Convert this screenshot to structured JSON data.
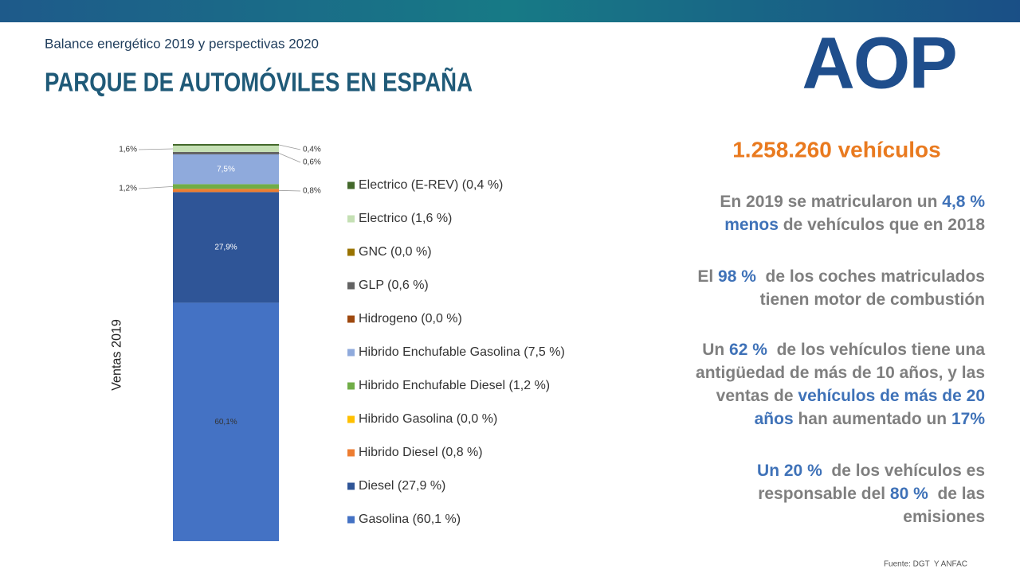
{
  "header": {
    "subtitle": "Balance energético 2019 y perspectivas 2020",
    "title": "PARQUE DE AUTOMÓVILES EN ESPAÑA",
    "logo": "AOP"
  },
  "chart_data": {
    "type": "stacked-bar",
    "categories": [
      "Ventas 2019"
    ],
    "series": [
      {
        "name": "Gasolina (60,1 %)",
        "color": "#4472c4",
        "values": [
          60.1
        ],
        "value_labels": [
          "60,1%"
        ]
      },
      {
        "name": "Diesel (27,9 %)",
        "color": "#2f5597",
        "values": [
          27.9
        ],
        "value_labels": [
          "27,9%"
        ]
      },
      {
        "name": "Hibrido Diesel (0,8 %)",
        "color": "#ed7d31",
        "values": [
          0.8
        ],
        "value_labels": [
          "0,8%"
        ]
      },
      {
        "name": "Hibrido Gasolina (0,0 %)",
        "color": "#ffc000",
        "values": [
          0.0
        ]
      },
      {
        "name": "Hibrido Enchufable Diesel (1,2 %)",
        "color": "#70ad47",
        "values": [
          1.2
        ],
        "value_labels": [
          "1,2%"
        ]
      },
      {
        "name": "Hibrido Enchufable Gasolina (7,5 %)",
        "color": "#8faadc",
        "values": [
          7.5
        ],
        "value_labels": [
          "7,5%"
        ]
      },
      {
        "name": "Hidrogeno (0,0 %)",
        "color": "#9e480e",
        "values": [
          0.0
        ]
      },
      {
        "name": "GLP (0,6 %)",
        "color": "#636363",
        "values": [
          0.6
        ],
        "value_labels": [
          "0,6%"
        ]
      },
      {
        "name": "GNC (0,0 %)",
        "color": "#997300",
        "values": [
          0.0
        ]
      },
      {
        "name": "Electrico (1,6 %)",
        "color": "#c5e0b4",
        "values": [
          1.6
        ],
        "value_labels": [
          "1,6%"
        ]
      },
      {
        "name": "Electrico (E-REV) (0,4 %)",
        "color": "#43682b",
        "values": [
          0.4
        ],
        "value_labels": [
          "0,4%"
        ]
      }
    ]
  },
  "text_panel": {
    "headline": "1.258.260 vehículos",
    "paragraphs": [
      {
        "lines": [
          [
            {
              "text": "En 2019 se matricularon un "
            },
            {
              "text": "4,8 %",
              "emphasis": true
            }
          ],
          [
            {
              "text": "menos",
              "emphasis": true
            },
            {
              "text": " de vehículos que en 2018"
            }
          ]
        ]
      },
      {
        "lines": [
          [
            {
              "text": "El "
            },
            {
              "text": "98 %",
              "emphasis": true
            },
            {
              "text": "  de los coches matriculados"
            }
          ],
          [
            {
              "text": "tienen motor de combustión"
            }
          ]
        ]
      },
      {
        "lines": [
          [
            {
              "text": "Un "
            },
            {
              "text": "62 %",
              "emphasis": true
            },
            {
              "text": "  de los vehículos tiene una"
            }
          ],
          [
            {
              "text": "antigüedad de más de 10 años, y las"
            }
          ],
          [
            {
              "text": "ventas de "
            },
            {
              "text": "vehículos de más de 20",
              "emphasis": true
            }
          ],
          [
            {
              "text": "años",
              "emphasis": true
            },
            {
              "text": " han aumentado un "
            },
            {
              "text": "17%",
              "emphasis": true
            }
          ]
        ]
      },
      {
        "lines": [
          [
            {
              "text": "Un 20 %",
              "emphasis": true
            },
            {
              "text": "  de los vehículos es"
            }
          ],
          [
            {
              "text": "responsable del "
            },
            {
              "text": "80 %",
              "emphasis": true
            },
            {
              "text": "  de las"
            }
          ],
          [
            {
              "text": "emisiones"
            }
          ]
        ]
      }
    ]
  },
  "footer": {
    "source": "Fuente: DGT  Y ANFAC"
  }
}
